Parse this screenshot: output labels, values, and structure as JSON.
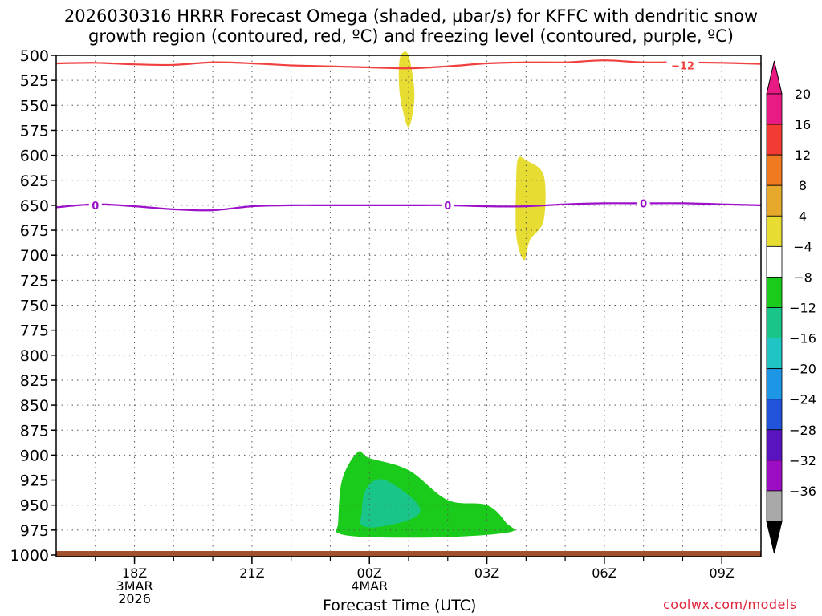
{
  "chart_data": {
    "type": "heatmap",
    "title_lines": [
      "2026030316 HRRR Forecast Omega (shaded, μbar/s) for KFFC with dendritic snow",
      "growth region (contoured, red, ºC) and freezing level (contoured, purple, ºC)"
    ],
    "xlabel": "Forecast Time (UTC)",
    "ylabel": "",
    "y_axis": {
      "unit": "hPa",
      "range": [
        1000,
        500
      ],
      "ticks": [
        500,
        525,
        550,
        575,
        600,
        625,
        650,
        675,
        700,
        725,
        750,
        775,
        800,
        825,
        850,
        875,
        900,
        925,
        950,
        975,
        1000
      ]
    },
    "x_axis": {
      "range_hours_from_init": [
        0,
        18
      ],
      "ticks": [
        {
          "hour": 2,
          "lines": [
            "18Z",
            "3MAR",
            "2026"
          ]
        },
        {
          "hour": 5,
          "lines": [
            "21Z"
          ]
        },
        {
          "hour": 8,
          "lines": [
            "00Z",
            "4MAR"
          ]
        },
        {
          "hour": 11,
          "lines": [
            "03Z"
          ]
        },
        {
          "hour": 14,
          "lines": [
            "06Z"
          ]
        },
        {
          "hour": 17,
          "lines": [
            "09Z"
          ]
        }
      ]
    },
    "grid": true,
    "colorbar": {
      "placement": "right",
      "levels": [
        {
          "label": "20",
          "color": "#e81a83"
        },
        {
          "label": "16",
          "color": "#f23b33"
        },
        {
          "label": "12",
          "color": "#ef7a21"
        },
        {
          "label": "8",
          "color": "#e6a92c"
        },
        {
          "label": "4",
          "color": "#e6dc32"
        },
        {
          "label": "−4",
          "color": "#ffffff"
        },
        {
          "label": "−8",
          "color": "#1bcb1b"
        },
        {
          "label": "−12",
          "color": "#19c589"
        },
        {
          "label": "−16",
          "color": "#1ec5c3"
        },
        {
          "label": "−20",
          "color": "#1e96e6"
        },
        {
          "label": "−24",
          "color": "#2154db"
        },
        {
          "label": "−28",
          "color": "#5a14bf"
        },
        {
          "label": "−32",
          "color": "#9c0dc4"
        },
        {
          "label": "−36",
          "color": "#a9a9a9"
        }
      ],
      "bottom_arrow_color": "#000000",
      "top_arrow_color": "#e81a83"
    },
    "contours": [
      {
        "name": "dendritic snow growth (-12°C)",
        "color": "#f04040",
        "label": "−12",
        "label_at": [
          16.0,
          510
        ],
        "points": [
          [
            0,
            508
          ],
          [
            1,
            507.5
          ],
          [
            2,
            509
          ],
          [
            3,
            509.5
          ],
          [
            4,
            507
          ],
          [
            5,
            508
          ],
          [
            6,
            510
          ],
          [
            7,
            511
          ],
          [
            8,
            512
          ],
          [
            9,
            513
          ],
          [
            10,
            511
          ],
          [
            11,
            508
          ],
          [
            12,
            507
          ],
          [
            13,
            507
          ],
          [
            14,
            505
          ],
          [
            15,
            507
          ],
          [
            16,
            507
          ],
          [
            17,
            507.5
          ],
          [
            18,
            508.5
          ]
        ]
      },
      {
        "name": "freezing level (0°C)",
        "color": "#9b10c8",
        "label": "0",
        "labels_at": [
          [
            1,
            650
          ],
          [
            10,
            650
          ],
          [
            15,
            648
          ]
        ],
        "points": [
          [
            0,
            652
          ],
          [
            1,
            649
          ],
          [
            2,
            651
          ],
          [
            3,
            654
          ],
          [
            4,
            655
          ],
          [
            5,
            651
          ],
          [
            6,
            650
          ],
          [
            7,
            650
          ],
          [
            8,
            650
          ],
          [
            9,
            650
          ],
          [
            10,
            650
          ],
          [
            11,
            651
          ],
          [
            12,
            651
          ],
          [
            13,
            649
          ],
          [
            14,
            648
          ],
          [
            15,
            648
          ],
          [
            16,
            648
          ],
          [
            17,
            649
          ],
          [
            18,
            650
          ]
        ]
      }
    ],
    "shaded_regions": [
      {
        "level": "4 to 8",
        "color": "#e6dc32",
        "points": [
          [
            8.8,
            500
          ],
          [
            9.0,
            500
          ],
          [
            9.15,
            540
          ],
          [
            9.0,
            572
          ],
          [
            8.8,
            545
          ],
          [
            8.75,
            520
          ]
        ]
      },
      {
        "level": "4 to 8",
        "color": "#e6dc32",
        "points": [
          [
            11.8,
            603
          ],
          [
            12.0,
            605
          ],
          [
            12.45,
            620
          ],
          [
            12.45,
            665
          ],
          [
            12.1,
            685
          ],
          [
            11.95,
            705
          ],
          [
            11.75,
            680
          ],
          [
            11.75,
            625
          ]
        ]
      },
      {
        "level": "-4 to -8",
        "color": "#1bcb1b",
        "points": [
          [
            7.2,
            968
          ],
          [
            7.3,
            925
          ],
          [
            7.7,
            897
          ],
          [
            8.0,
            903
          ],
          [
            9.0,
            915
          ],
          [
            10.0,
            945
          ],
          [
            11.0,
            950
          ],
          [
            11.5,
            968
          ],
          [
            11.6,
            977
          ],
          [
            10.0,
            982
          ],
          [
            8.0,
            982
          ],
          [
            7.2,
            978
          ]
        ]
      },
      {
        "level": "-8 to -12",
        "color": "#19c589",
        "points": [
          [
            7.8,
            958
          ],
          [
            7.9,
            935
          ],
          [
            8.3,
            924
          ],
          [
            9.0,
            940
          ],
          [
            9.3,
            955
          ],
          [
            9.0,
            965
          ],
          [
            8.2,
            972
          ],
          [
            7.8,
            970
          ]
        ]
      }
    ],
    "terrain": {
      "color": "#a0522d",
      "top_hpa": 996
    },
    "watermark": "coolwx.com/models"
  }
}
